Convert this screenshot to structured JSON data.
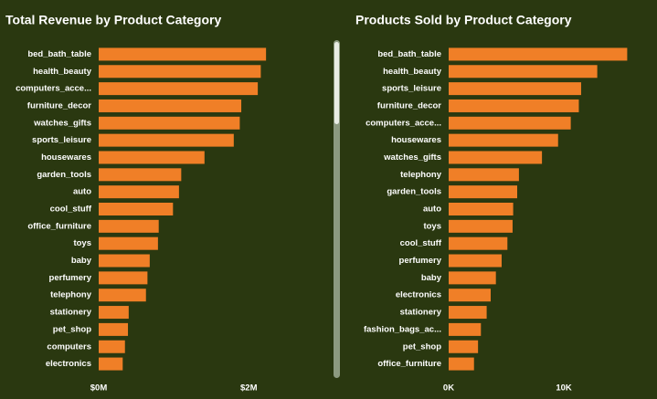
{
  "chart_data": [
    {
      "type": "bar",
      "orientation": "horizontal",
      "title": "Total Revenue by Product Category",
      "color": "#f07f27",
      "categories": [
        "bed_bath_table",
        "health_beauty",
        "computers_acce...",
        "furniture_decor",
        "watches_gifts",
        "sports_leisure",
        "housewares",
        "garden_tools",
        "auto",
        "cool_stuff",
        "office_furniture",
        "toys",
        "baby",
        "perfumery",
        "telephony",
        "stationery",
        "pet_shop",
        "computers",
        "electronics"
      ],
      "values": [
        2230000,
        2160000,
        2120000,
        1900000,
        1880000,
        1800000,
        1410000,
        1100000,
        1070000,
        990000,
        800000,
        790000,
        680000,
        650000,
        630000,
        400000,
        390000,
        350000,
        320000
      ],
      "xlim": [
        0,
        2350000
      ],
      "xticks": [
        {
          "value": 0,
          "label": "$0M"
        },
        {
          "value": 2000000,
          "label": "$2M"
        }
      ]
    },
    {
      "type": "bar",
      "orientation": "horizontal",
      "title": "Products Sold by Product Category",
      "color": "#f07f27",
      "categories": [
        "bed_bath_table",
        "health_beauty",
        "sports_leisure",
        "furniture_decor",
        "computers_acce...",
        "housewares",
        "watches_gifts",
        "telephony",
        "garden_tools",
        "auto",
        "toys",
        "cool_stuff",
        "perfumery",
        "baby",
        "electronics",
        "stationery",
        "fashion_bags_ac...",
        "pet_shop",
        "office_furniture"
      ],
      "values": [
        15500,
        12900,
        11500,
        11300,
        10600,
        9500,
        8100,
        6100,
        5950,
        5600,
        5550,
        5100,
        4600,
        4100,
        3650,
        3300,
        2800,
        2550,
        2200
      ],
      "xlim": [
        0,
        16500
      ],
      "xticks": [
        {
          "value": 0,
          "label": "0K"
        },
        {
          "value": 10000,
          "label": "10K"
        }
      ]
    }
  ]
}
